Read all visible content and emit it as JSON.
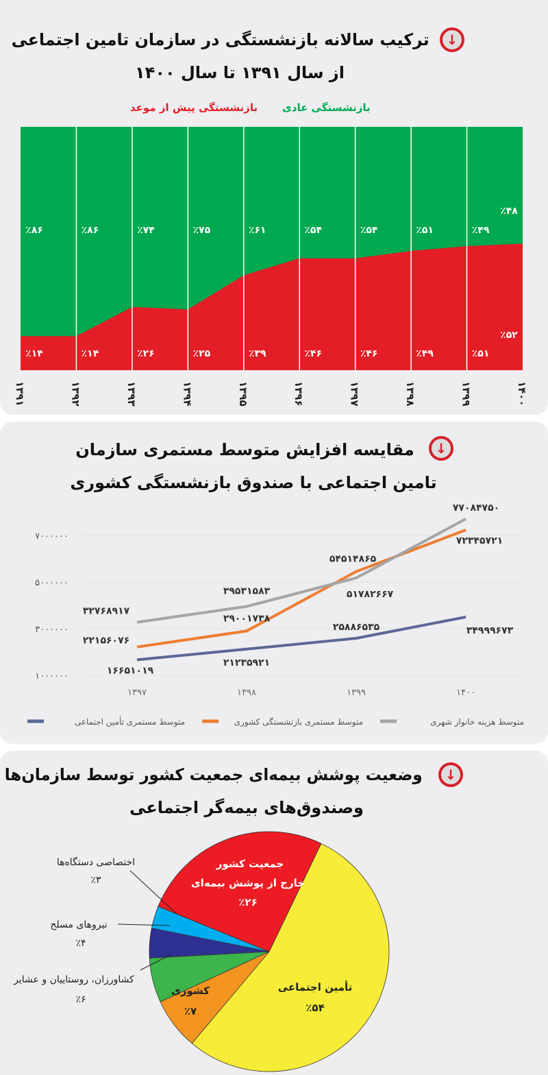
{
  "colors": {
    "green": "#00a84f",
    "red": "#e31e26",
    "accent": "#d7202a"
  },
  "icons": {
    "section": "arrow-down-circle-icon"
  },
  "chart_data": [
    {
      "type": "area",
      "stacked_percent": true,
      "title": "ترکیب سالانه بازنشستگی در سازمان تامین اجتماعی",
      "subtitle": "از سال ۱۳۹۱ تا سال ۱۴۰۰",
      "categories": [
        "۱۳۹۱",
        "۱۳۹۲",
        "۱۳۹۳",
        "۱۳۹۴",
        "۱۳۹۵",
        "۱۳۹۶",
        "۱۳۹۷",
        "۱۳۹۸",
        "۱۳۹۹",
        "۱۴۰۰"
      ],
      "series": [
        {
          "name": "بازنشستگی پیش از موعد",
          "color": "#e31e26",
          "values": [
            14,
            14,
            26,
            25,
            39,
            46,
            46,
            49,
            51,
            52
          ],
          "labels": [
            "٪۱۴",
            "٪۱۴",
            "٪۲۶",
            "٪۲۵",
            "٪۳۹",
            "٪۴۶",
            "٪۴۶",
            "٪۴۹",
            "٪۵۱",
            "٪۵۲"
          ]
        },
        {
          "name": "بازنشستگی عادی",
          "color": "#00a84f",
          "values": [
            86,
            86,
            74,
            75,
            61,
            54,
            54,
            51,
            49,
            48
          ],
          "labels": [
            "٪۸۶",
            "٪۸۶",
            "٪۷۴",
            "٪۷۵",
            "٪۶۱",
            "٪۵۴",
            "٪۵۴",
            "٪۵۱",
            "٪۴۹",
            "٪۴۸"
          ]
        }
      ],
      "ylim": [
        0,
        100
      ],
      "grid": true
    },
    {
      "type": "line",
      "title": "مقایسه افزایش متوسط مستمری سازمان",
      "subtitle": "تامین اجتماعی با صندوق بازنشستگی کشوری",
      "categories": [
        "۱۳۹۷",
        "۱۳۹۸",
        "۱۳۹۹",
        "۱۴۰۰"
      ],
      "yticks": [
        "۱۰۰۰۰۰۰",
        "۳۰۰۰۰۰۰",
        "۵۰۰۰۰۰۰",
        "۷۰۰۰۰۰۰"
      ],
      "series": [
        {
          "name": "متوسط مستمری تأمین اجتماعی",
          "color": "#5b6796",
          "values": [
            16651019,
            21235921,
            25886535,
            34999673
          ],
          "labels": [
            "۱۶۶۵۱۰۱۹",
            "۲۱۲۳۵۹۲۱",
            "۲۵۸۸۶۵۳۵",
            "۳۴۹۹۹۶۷۳"
          ]
        },
        {
          "name": "متوسط مستمری بازنشستگی کشوری",
          "color": "#ee7d31",
          "values": [
            22156076,
            29001738,
            54514865,
            72345721
          ],
          "labels": [
            "۲۲۱۵۶۰۷۶",
            "۲۹۰۰۱۷۳۸",
            "۵۴۵۱۴۸۶۵",
            "۷۲۳۴۵۷۲۱"
          ]
        },
        {
          "name": "متوسط هزینه خانوار شهری",
          "color": "#a5a5a5",
          "values": [
            32768917,
            39531583,
            51782667,
            77084750
          ],
          "labels": [
            "۳۲۷۶۸۹۱۷",
            "۳۹۵۳۱۵۸۳",
            "۵۱۷۸۲۶۶۷",
            "۷۷۰۸۴۷۵۰"
          ]
        }
      ],
      "legend": "bottom",
      "grid": true
    },
    {
      "type": "pie",
      "title": "وضعیت پوشش بیمه‌ای جمعیت کشور توسط سازمان‌ها",
      "subtitle": "وصندوق‌های بیمه‌گر اجتماعی",
      "slices": [
        {
          "name": "تأمین اجتماعی",
          "value": 54,
          "label": "٪۵۴",
          "color": "#f7ec37"
        },
        {
          "name": "کشوری",
          "value": 7,
          "label": "٪۷",
          "color": "#f39420"
        },
        {
          "name": "کشاورزان، روستاییان و عشایر",
          "value": 6,
          "label": "٪۶",
          "color": "#3cb54b"
        },
        {
          "name": "نیروهای مسلح",
          "value": 4,
          "label": "٪۴",
          "color": "#2e3191"
        },
        {
          "name": "اختصاصی دستگاه‌ها",
          "value": 3,
          "label": "٪۳",
          "color": "#00aeef"
        },
        {
          "name": "جمعیت کشور خارج از پوشش بیمه‌ای",
          "value": 26,
          "label": "٪۲۶",
          "color": "#ed1c24"
        }
      ]
    }
  ]
}
